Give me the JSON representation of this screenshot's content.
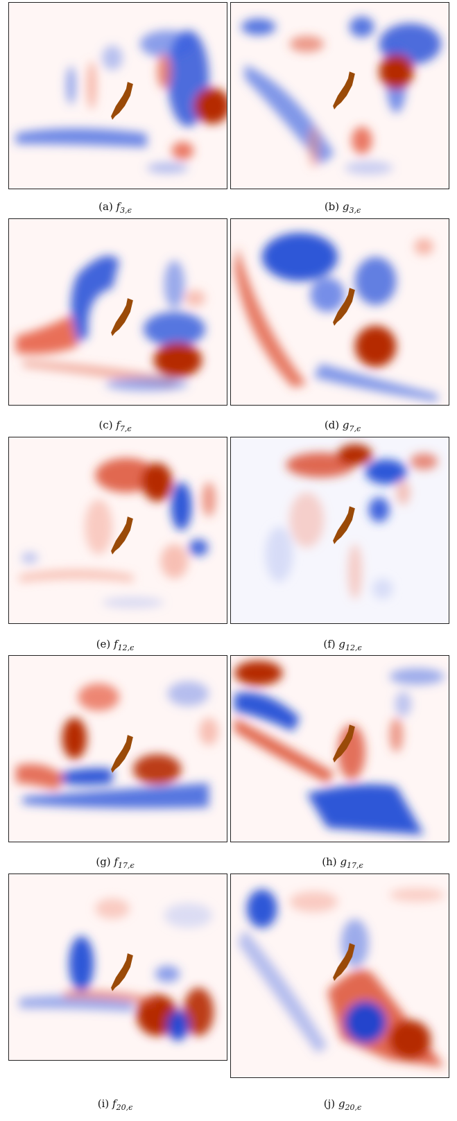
{
  "colors": {
    "positive": "#b22a05",
    "negative": "#0a2fd1",
    "island": "#9a4a08",
    "background": "#fff6f5"
  },
  "panels": [
    {
      "id": "a",
      "tag": "(a)",
      "fn": "f",
      "sub": "3,ϵ"
    },
    {
      "id": "b",
      "tag": "(b)",
      "fn": "g",
      "sub": "3,ϵ"
    },
    {
      "id": "c",
      "tag": "(c)",
      "fn": "f",
      "sub": "7,ϵ"
    },
    {
      "id": "d",
      "tag": "(d)",
      "fn": "g",
      "sub": "7,ϵ"
    },
    {
      "id": "e",
      "tag": "(e)",
      "fn": "f",
      "sub": "12,ϵ"
    },
    {
      "id": "f",
      "tag": "(f)",
      "fn": "g",
      "sub": "12,ϵ"
    },
    {
      "id": "g",
      "tag": "(g)",
      "fn": "f",
      "sub": "17,ϵ"
    },
    {
      "id": "h",
      "tag": "(h)",
      "fn": "g",
      "sub": "17,ϵ"
    },
    {
      "id": "i",
      "tag": "(i)",
      "fn": "f",
      "sub": "20,ϵ"
    },
    {
      "id": "j",
      "tag": "(j)",
      "fn": "g",
      "sub": "20,ϵ"
    }
  ]
}
